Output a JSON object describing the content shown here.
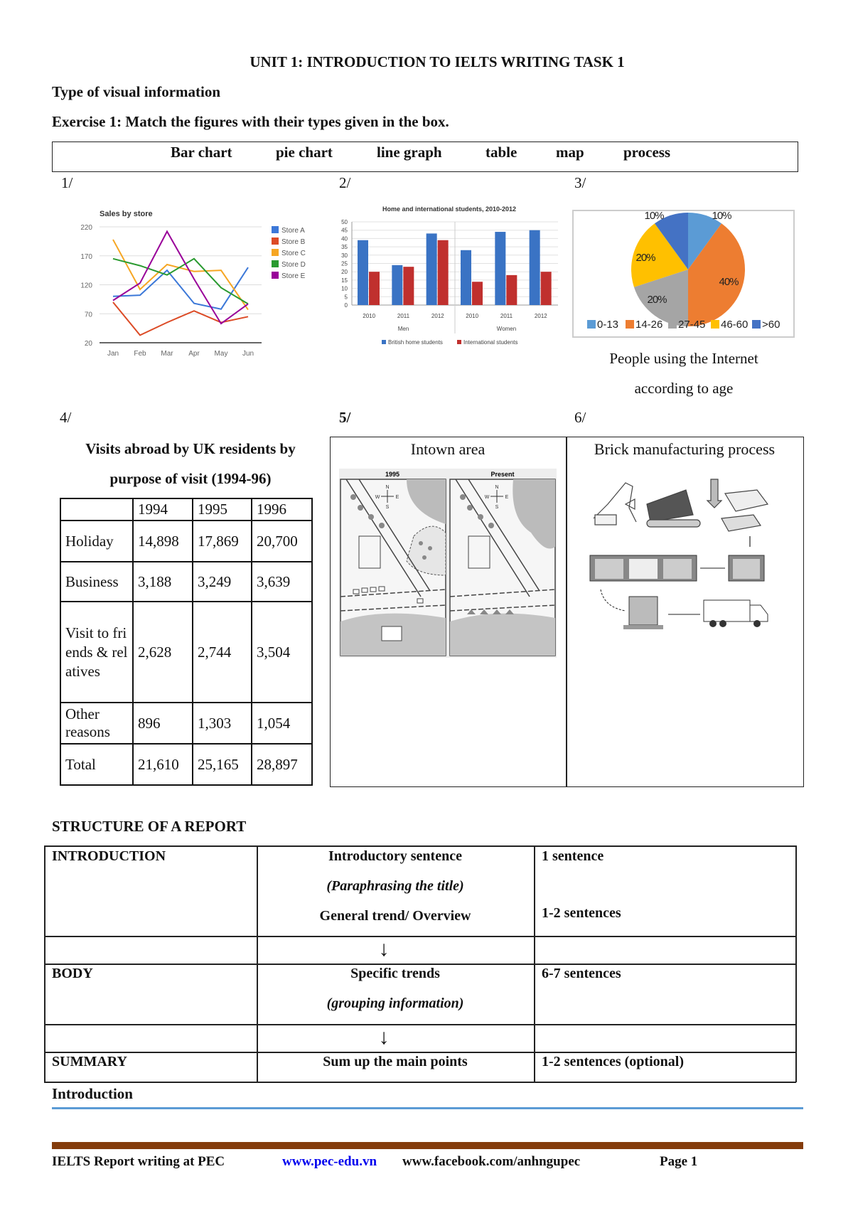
{
  "header": {
    "title": "UNIT 1: INTRODUCTION TO IELTS WRITING TASK 1"
  },
  "section1": {
    "heading": "Type of visual information",
    "exercise": "Exercise 1: Match the figures with their types given in the box."
  },
  "type_box": [
    "Bar chart",
    "pie chart",
    "line graph",
    "table",
    "map",
    "process"
  ],
  "figure_numbers": [
    "1/",
    "2/",
    "3/",
    "4/",
    "5/",
    "6/"
  ],
  "pie_caption": [
    "People using the Internet",
    "according to age"
  ],
  "table_figure": {
    "title": [
      "Visits abroad by UK residents by",
      "purpose of visit (1994-96)"
    ],
    "columns": [
      "",
      "1994",
      "1995",
      "1996"
    ],
    "rows": [
      [
        "Holiday",
        "14,898",
        "17,869",
        "20,700"
      ],
      [
        "Business",
        "3,188",
        "3,249",
        "3,639"
      ],
      [
        "Visit to friends & relatives",
        "2,628",
        "2,744",
        "3,504"
      ],
      [
        "Other reasons",
        "896",
        "1,303",
        "1,054"
      ],
      [
        "Total",
        "21,610",
        "25,165",
        "28,897"
      ]
    ]
  },
  "map_figure": {
    "title": "Intown area",
    "panels": [
      "1995",
      "Present"
    ],
    "compass": [
      "N",
      "S",
      "W",
      "E"
    ]
  },
  "process_figure": {
    "title": "Brick manufacturing process"
  },
  "chart_data": [
    {
      "type": "line",
      "title": "Sales by store",
      "categories": [
        "Jan",
        "Feb",
        "Mar",
        "Apr",
        "May",
        "Jun"
      ],
      "ylim": [
        20,
        220
      ],
      "yticks": [
        20,
        70,
        120,
        170,
        220
      ],
      "grid": true,
      "legend": "right",
      "series": [
        {
          "name": "Store A",
          "color": "#3c78d8",
          "values": [
            100,
            102,
            145,
            88,
            78,
            150
          ]
        },
        {
          "name": "Store B",
          "color": "#dc4b26",
          "values": [
            90,
            33,
            55,
            75,
            55,
            65
          ]
        },
        {
          "name": "Store C",
          "color": "#f6a623",
          "values": [
            198,
            112,
            155,
            143,
            145,
            77
          ]
        },
        {
          "name": "Store D",
          "color": "#2a9a30",
          "values": [
            165,
            153,
            137,
            165,
            115,
            87
          ]
        },
        {
          "name": "Store E",
          "color": "#990099",
          "values": [
            93,
            123,
            212,
            130,
            53,
            87
          ]
        }
      ]
    },
    {
      "type": "bar",
      "title": "Home and international students, 2010-2012",
      "categories": [
        "2010",
        "2011",
        "2012",
        "2010",
        "2011",
        "2012"
      ],
      "groups": [
        "Men",
        "Women"
      ],
      "ylim": [
        0,
        50
      ],
      "yticks": [
        0,
        5,
        10,
        15,
        20,
        25,
        30,
        35,
        40,
        45,
        50
      ],
      "grid": true,
      "legend": "bottom",
      "series": [
        {
          "name": "British home students",
          "color": "#3a73c4",
          "values": [
            39,
            24,
            43,
            33,
            44,
            45
          ]
        },
        {
          "name": "International students",
          "color": "#c0302e",
          "values": [
            20,
            23,
            39,
            14,
            18,
            20
          ]
        }
      ]
    },
    {
      "type": "pie",
      "legend": "bottom",
      "slices": [
        {
          "label": "0-13",
          "value": 10,
          "text": "10%",
          "color": "#5b9bd5"
        },
        {
          "label": "14-26",
          "value": 40,
          "text": "40%",
          "color": "#ed7d31"
        },
        {
          "label": "27-45",
          "value": 20,
          "text": "20%",
          "color": "#a5a5a5"
        },
        {
          "label": "46-60",
          "value": 20,
          "text": "20%",
          "color": "#ffc000"
        },
        {
          "label": ">60",
          "value": 10,
          "text": "10%",
          "color": "#4472c4"
        }
      ]
    }
  ],
  "structure": {
    "heading": "STRUCTURE OF A REPORT",
    "intro": {
      "label": "INTRODUCTION",
      "mid": [
        "Introductory sentence",
        "(Paraphrasing the title)",
        "General trend/ Overview"
      ],
      "right": [
        "1 sentence",
        "1-2 sentences"
      ]
    },
    "body": {
      "label": "BODY",
      "mid": [
        "Specific trends",
        "(grouping information)"
      ],
      "right": "6-7 sentences"
    },
    "summary": {
      "label": "SUMMARY",
      "mid": "Sum up the main points",
      "right": "1-2 sentences (optional)"
    },
    "arrow": "↓"
  },
  "next_heading": "Introduction",
  "colors": {
    "rule_blue": "#5b9bd5",
    "footer_bar": "#843c0c",
    "link": "#0000ee"
  },
  "footer": {
    "left": "IELTS Report writing at PEC",
    "link": "www.pec-edu.vn",
    "facebook": "www.facebook.com/anhngupec",
    "page": "Page 1"
  }
}
